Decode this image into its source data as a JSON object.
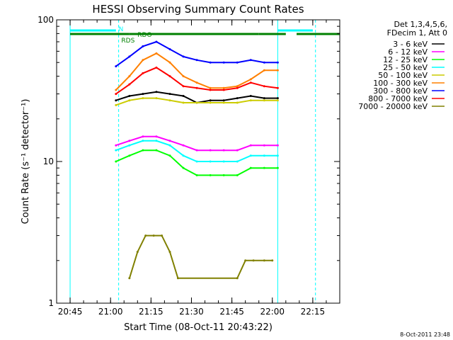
{
  "chart_data": {
    "type": "line",
    "title": "HESSI Observing Summary Count Rates",
    "xlabel": "Start Time (08-Oct-11 20:43:22)",
    "ylabel": "Count Rate (s⁻¹ detector⁻¹)",
    "yscale": "log",
    "xlim": [
      "20:40",
      "22:25"
    ],
    "ylim": [
      1,
      100
    ],
    "x_ticks": [
      "20:45",
      "21:00",
      "21:15",
      "21:30",
      "21:45",
      "22:00",
      "22:15"
    ],
    "y_ticks": [
      "1",
      "10",
      "100"
    ],
    "legend": {
      "placement": "right",
      "header": [
        "Det 1,3,4,5,6,",
        "FDecim 1, Att 0"
      ]
    },
    "series": [
      {
        "name": "3 - 6 keV",
        "color": "#000000",
        "x": [
          "21:02",
          "21:07",
          "21:12",
          "21:17",
          "21:22",
          "21:27",
          "21:32",
          "21:37",
          "21:42",
          "21:47",
          "21:52",
          "21:57",
          "22:02"
        ],
        "values": [
          27,
          29,
          30,
          31,
          30,
          29,
          26,
          27,
          27,
          28,
          29,
          28,
          28
        ]
      },
      {
        "name": "6 - 12 keV",
        "color": "#ff00ff",
        "x": [
          "21:02",
          "21:07",
          "21:12",
          "21:17",
          "21:22",
          "21:27",
          "21:32",
          "21:37",
          "21:42",
          "21:47",
          "21:52",
          "21:57",
          "22:02"
        ],
        "values": [
          13,
          14,
          15,
          15,
          14,
          13,
          12,
          12,
          12,
          12,
          13,
          13,
          13
        ]
      },
      {
        "name": "12 - 25 keV",
        "color": "#00ff00",
        "x": [
          "21:02",
          "21:07",
          "21:12",
          "21:17",
          "21:22",
          "21:27",
          "21:32",
          "21:37",
          "21:42",
          "21:47",
          "21:52",
          "21:57",
          "22:02"
        ],
        "values": [
          10,
          11,
          12,
          12,
          11,
          9,
          8,
          8,
          8,
          8,
          9,
          9,
          9
        ]
      },
      {
        "name": "25 - 50 keV",
        "color": "#00ffff",
        "x": [
          "21:02",
          "21:07",
          "21:12",
          "21:17",
          "21:22",
          "21:27",
          "21:32",
          "21:37",
          "21:42",
          "21:47",
          "21:52",
          "21:57",
          "22:02"
        ],
        "values": [
          12,
          13,
          14,
          14,
          13,
          11,
          10,
          10,
          10,
          10,
          11,
          11,
          11
        ]
      },
      {
        "name": "50 - 100 keV",
        "color": "#cccc00",
        "x": [
          "21:02",
          "21:07",
          "21:12",
          "21:17",
          "21:22",
          "21:27",
          "21:32",
          "21:37",
          "21:42",
          "21:47",
          "21:52",
          "21:57",
          "22:02"
        ],
        "values": [
          25,
          27,
          28,
          28,
          27,
          26,
          26,
          26,
          26,
          26,
          27,
          27,
          27
        ]
      },
      {
        "name": "100 - 300 keV",
        "color": "#ff8000",
        "x": [
          "21:02",
          "21:07",
          "21:12",
          "21:17",
          "21:22",
          "21:27",
          "21:32",
          "21:37",
          "21:42",
          "21:47",
          "21:52",
          "21:57",
          "22:02"
        ],
        "values": [
          32,
          40,
          52,
          58,
          50,
          40,
          36,
          33,
          33,
          34,
          38,
          44,
          44
        ]
      },
      {
        "name": "300 - 800 keV",
        "color": "#0000ff",
        "x": [
          "21:02",
          "21:07",
          "21:12",
          "21:17",
          "21:22",
          "21:27",
          "21:32",
          "21:37",
          "21:42",
          "21:47",
          "21:52",
          "21:57",
          "22:02"
        ],
        "values": [
          47,
          55,
          65,
          70,
          62,
          55,
          52,
          50,
          50,
          50,
          52,
          50,
          50
        ]
      },
      {
        "name": "800 - 7000 keV",
        "color": "#ff0000",
        "x": [
          "21:02",
          "21:07",
          "21:12",
          "21:17",
          "21:22",
          "21:27",
          "21:32",
          "21:37",
          "21:42",
          "21:47",
          "21:52",
          "21:57",
          "22:02"
        ],
        "values": [
          30,
          35,
          42,
          46,
          40,
          34,
          33,
          32,
          32,
          33,
          36,
          34,
          33
        ]
      },
      {
        "name": "7000 - 20000 keV",
        "color": "#808000",
        "x": [
          "21:07",
          "21:10",
          "21:13",
          "21:16",
          "21:19",
          "21:22",
          "21:25",
          "21:47",
          "21:50",
          "21:53",
          "21:57",
          "22:00"
        ],
        "values": [
          1.5,
          2.3,
          3.0,
          3.0,
          3.0,
          2.3,
          1.5,
          1.5,
          2.0,
          2.0,
          2.0,
          2.0
        ]
      }
    ],
    "annotations": [
      {
        "text": "RDO",
        "color": "#008000",
        "x": "21:10"
      },
      {
        "text": "N",
        "color": "#00ffff",
        "x": "21:03"
      },
      {
        "text": "RDS",
        "color": "#008000",
        "x": "21:04"
      }
    ],
    "state_bars": [
      {
        "name": "night",
        "color": "#00ffff",
        "segments": [
          [
            "20:45",
            "21:02"
          ],
          [
            "22:02",
            "22:15"
          ]
        ]
      },
      {
        "name": "saa",
        "color": "#008000",
        "segments": [
          [
            "20:45",
            "21:07"
          ],
          [
            "21:07",
            "21:55"
          ],
          [
            "21:55",
            "22:05"
          ],
          [
            "22:09",
            "22:25"
          ]
        ]
      }
    ],
    "vlines": [
      {
        "color": "#00ffff",
        "style": "solid",
        "x": [
          "20:45",
          "22:02"
        ]
      },
      {
        "color": "#00ffff",
        "style": "dashed",
        "x": [
          "21:03",
          "22:16"
        ]
      }
    ],
    "footer_timestamp": "8-Oct-2011 23:48",
    "grid": false
  }
}
